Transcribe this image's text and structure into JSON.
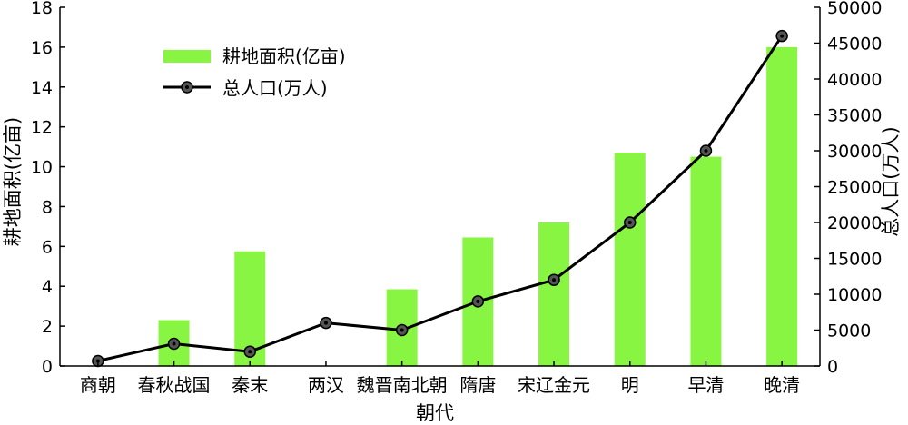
{
  "chart_data": {
    "type": "bar",
    "title": "",
    "xlabel": "朝代",
    "ylabel_left": "耕地面积(亿亩)",
    "ylabel_right": "总人口(万人)",
    "categories": [
      "商朝",
      "春秋战国",
      "秦末",
      "两汉",
      "魏晋南北朝",
      "隋唐",
      "宋辽金元",
      "明",
      "早清",
      "晚清"
    ],
    "ylim_left": [
      0,
      18
    ],
    "ylim_right": [
      0,
      50000
    ],
    "yticks_left": [
      "0",
      "2",
      "4",
      "6",
      "8",
      "10",
      "12",
      "14",
      "16",
      "18"
    ],
    "yticks_right": [
      "0",
      "5000",
      "10000",
      "15000",
      "20000",
      "25000",
      "30000",
      "35000",
      "40000",
      "45000",
      "50000"
    ],
    "grid": false,
    "legend_position": "top-left",
    "series": [
      {
        "name": "耕地面积(亿亩)",
        "type": "bar",
        "axis": "left",
        "color": "#88f542",
        "values": [
          null,
          2.3,
          5.75,
          null,
          3.85,
          6.45,
          7.2,
          10.7,
          10.5,
          16.0
        ]
      },
      {
        "name": "总人口(万人)",
        "type": "line",
        "axis": "right",
        "color": "#000000",
        "marker_color": "#555555",
        "values": [
          700,
          3100,
          2000,
          6000,
          5000,
          9000,
          12000,
          20000,
          30000,
          46000
        ]
      }
    ]
  }
}
